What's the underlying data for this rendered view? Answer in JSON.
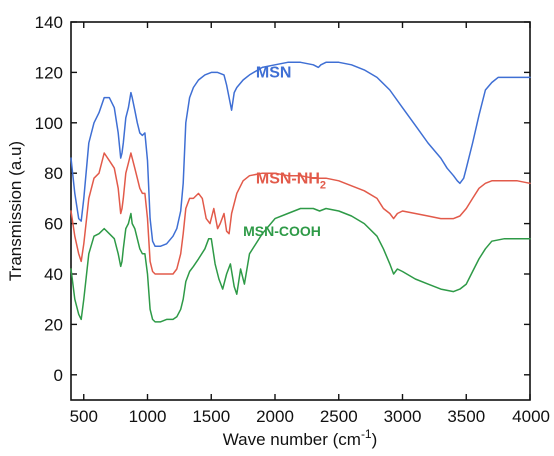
{
  "chart_data": {
    "type": "line",
    "xlabel": "Wave number (cm",
    "xlabel_sup": "-1",
    "xlabel_tail": ")",
    "ylabel": "Transmission (a.u)",
    "xlim": [
      400,
      4000
    ],
    "ylim": [
      -10,
      140
    ],
    "x_ticks": [
      500,
      1000,
      1500,
      2000,
      2500,
      3000,
      3500,
      4000
    ],
    "y_ticks": [
      0,
      20,
      40,
      60,
      80,
      100,
      120,
      140
    ],
    "grid": false,
    "legend": "inline labels",
    "series": [
      {
        "name": "MSN",
        "label_main": "MSN",
        "label_sub": "",
        "label_tail": "",
        "label_pos": [
          1850,
          118
        ],
        "color": "#3f6fd4",
        "x": [
          400,
          430,
          460,
          480,
          500,
          540,
          580,
          620,
          660,
          700,
          740,
          770,
          790,
          800,
          810,
          830,
          850,
          870,
          880,
          900,
          920,
          940,
          960,
          980,
          1000,
          1020,
          1040,
          1060,
          1080,
          1100,
          1150,
          1200,
          1230,
          1260,
          1280,
          1300,
          1330,
          1360,
          1400,
          1450,
          1500,
          1550,
          1600,
          1620,
          1640,
          1660,
          1680,
          1700,
          1750,
          1800,
          1900,
          2000,
          2100,
          2200,
          2300,
          2340,
          2360,
          2400,
          2500,
          2600,
          2700,
          2800,
          2900,
          3000,
          3100,
          3200,
          3300,
          3350,
          3400,
          3430,
          3450,
          3480,
          3500,
          3550,
          3600,
          3650,
          3700,
          3750,
          3800,
          3900,
          4000
        ],
        "y": [
          86,
          72,
          62,
          61,
          70,
          92,
          100,
          104,
          110,
          110,
          106,
          96,
          86,
          88,
          92,
          102,
          106,
          112,
          110,
          105,
          100,
          96,
          95,
          96,
          85,
          62,
          53,
          51,
          51,
          51,
          52,
          55,
          58,
          65,
          76,
          100,
          110,
          114,
          117,
          119,
          120,
          120,
          119,
          115,
          110,
          105,
          112,
          114,
          117,
          119,
          122,
          123,
          124,
          124,
          123,
          122,
          123,
          124,
          124,
          123,
          121,
          118,
          113,
          106,
          99,
          92,
          86,
          82,
          79,
          77,
          76,
          78,
          82,
          92,
          103,
          113,
          116,
          118,
          118,
          118,
          118
        ]
      },
      {
        "name": "MSN-NH2",
        "label_main": "MSN-NH",
        "label_sub": "2",
        "label_tail": "",
        "label_pos": [
          1850,
          76
        ],
        "color": "#e25a4a",
        "x": [
          400,
          430,
          460,
          480,
          500,
          540,
          580,
          620,
          660,
          700,
          740,
          770,
          790,
          800,
          810,
          830,
          850,
          870,
          880,
          900,
          920,
          940,
          960,
          980,
          1000,
          1020,
          1040,
          1060,
          1080,
          1100,
          1150,
          1200,
          1230,
          1260,
          1280,
          1300,
          1330,
          1360,
          1400,
          1430,
          1460,
          1490,
          1520,
          1550,
          1570,
          1600,
          1620,
          1640,
          1660,
          1700,
          1750,
          1800,
          1900,
          2000,
          2100,
          2200,
          2300,
          2350,
          2400,
          2500,
          2600,
          2700,
          2800,
          2850,
          2900,
          2930,
          2960,
          3000,
          3100,
          3200,
          3300,
          3400,
          3450,
          3500,
          3550,
          3600,
          3650,
          3700,
          3800,
          3900,
          4000
        ],
        "y": [
          65,
          55,
          48,
          45,
          52,
          70,
          78,
          80,
          88,
          85,
          82,
          74,
          64,
          66,
          70,
          80,
          84,
          88,
          86,
          82,
          78,
          74,
          72,
          72,
          62,
          45,
          41,
          40,
          40,
          40,
          40,
          40,
          42,
          48,
          56,
          66,
          70,
          70,
          72,
          70,
          62,
          60,
          66,
          58,
          60,
          64,
          57,
          56,
          64,
          72,
          77,
          79,
          80,
          80,
          79,
          79,
          78,
          78,
          78,
          77,
          75,
          73,
          70,
          66,
          64,
          62,
          64,
          65,
          64,
          63,
          62,
          62,
          63,
          66,
          70,
          74,
          76,
          77,
          77,
          77,
          76
        ]
      },
      {
        "name": "MSN-COOH",
        "label_main": "MSN-COOH",
        "label_sub": "",
        "label_tail": "",
        "label_pos": [
          1750,
          55
        ],
        "color": "#2e9a47",
        "x": [
          400,
          430,
          460,
          480,
          500,
          540,
          580,
          620,
          660,
          700,
          740,
          770,
          790,
          800,
          810,
          830,
          850,
          870,
          880,
          900,
          920,
          940,
          960,
          980,
          1000,
          1020,
          1040,
          1060,
          1080,
          1100,
          1150,
          1200,
          1230,
          1260,
          1280,
          1300,
          1330,
          1360,
          1400,
          1450,
          1480,
          1500,
          1530,
          1560,
          1590,
          1620,
          1650,
          1680,
          1700,
          1730,
          1760,
          1800,
          1900,
          2000,
          2100,
          2200,
          2300,
          2350,
          2400,
          2500,
          2600,
          2700,
          2800,
          2850,
          2900,
          2930,
          2960,
          3000,
          3100,
          3200,
          3300,
          3400,
          3450,
          3500,
          3550,
          3600,
          3650,
          3700,
          3800,
          3900,
          4000
        ],
        "y": [
          42,
          30,
          24,
          22,
          30,
          48,
          55,
          56,
          58,
          56,
          54,
          48,
          43,
          45,
          50,
          58,
          60,
          64,
          60,
          58,
          54,
          50,
          48,
          48,
          40,
          26,
          22,
          21,
          21,
          21,
          22,
          22,
          23,
          26,
          30,
          37,
          41,
          43,
          46,
          50,
          54,
          54,
          44,
          38,
          34,
          40,
          44,
          35,
          32,
          42,
          36,
          48,
          56,
          62,
          64,
          66,
          66,
          65,
          66,
          65,
          63,
          60,
          55,
          50,
          44,
          40,
          42,
          41,
          38,
          36,
          34,
          33,
          34,
          36,
          41,
          46,
          50,
          53,
          54,
          54,
          54
        ]
      }
    ]
  }
}
